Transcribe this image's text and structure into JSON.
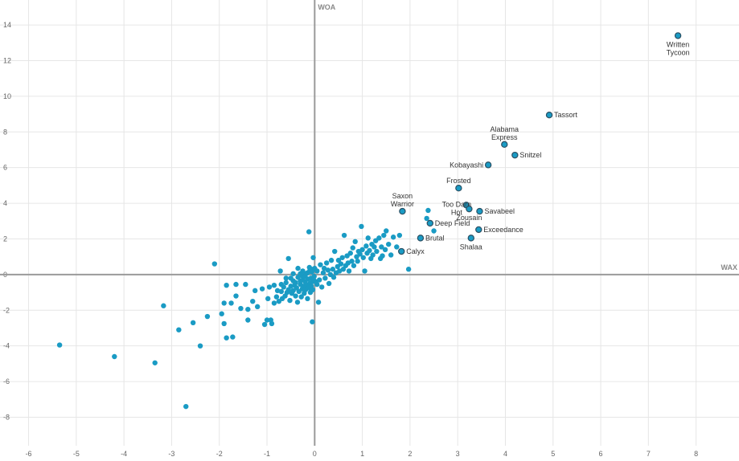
{
  "chart_data": {
    "type": "scatter",
    "xlabel": "WAX",
    "ylabel": "WOA",
    "xlim": [
      -6.6,
      8.9
    ],
    "ylim": [
      -9.6,
      15.4
    ],
    "grid": true,
    "colors": {
      "point": "#1a9bc4",
      "labeled_stroke": "#2b4f63",
      "axis": "#9a9a9a",
      "grid": "#e6e6e6"
    },
    "x_ticks": [
      -6,
      -5,
      -4,
      -3,
      -2,
      -1,
      0,
      1,
      2,
      3,
      4,
      5,
      6,
      7,
      8
    ],
    "y_ticks": [
      -8,
      -6,
      -4,
      -2,
      0,
      2,
      4,
      6,
      8,
      10,
      12,
      14
    ],
    "labeled_points": [
      {
        "name": "Written Tycoon",
        "lines": [
          "Written",
          "Tycoon"
        ],
        "x": 7.62,
        "y": 13.4,
        "pos": "below"
      },
      {
        "name": "Tassort",
        "lines": [
          "Tassort"
        ],
        "x": 4.92,
        "y": 8.95,
        "pos": "right"
      },
      {
        "name": "Alabama Express",
        "lines": [
          "Alabama",
          "Express"
        ],
        "x": 3.98,
        "y": 7.3,
        "pos": "above"
      },
      {
        "name": "Snitzel",
        "lines": [
          "Snitzel"
        ],
        "x": 4.2,
        "y": 6.7,
        "pos": "right"
      },
      {
        "name": "Kobayashi",
        "lines": [
          "Kobayashi"
        ],
        "x": 3.64,
        "y": 6.15,
        "pos": "left"
      },
      {
        "name": "Frosted",
        "lines": [
          "Frosted"
        ],
        "x": 3.02,
        "y": 4.85,
        "pos": "above"
      },
      {
        "name": "Saxon Warrior",
        "lines": [
          "Saxon",
          "Warrior"
        ],
        "x": 1.84,
        "y": 3.55,
        "pos": "above"
      },
      {
        "name": "Too Darn Hot",
        "lines": [
          "Too Darn",
          "Hot"
        ],
        "x": 3.18,
        "y": 3.9,
        "pos": "tdh"
      },
      {
        "name": "Zousain",
        "lines": [
          "Zousain"
        ],
        "x": 3.24,
        "y": 3.68,
        "pos": "below"
      },
      {
        "name": "Savabeel",
        "lines": [
          "Savabeel"
        ],
        "x": 3.46,
        "y": 3.55,
        "pos": "right"
      },
      {
        "name": "Deep Field",
        "lines": [
          "Deep Field"
        ],
        "x": 2.42,
        "y": 2.88,
        "pos": "right"
      },
      {
        "name": "Exceedance",
        "lines": [
          "Exceedance"
        ],
        "x": 3.44,
        "y": 2.52,
        "pos": "right"
      },
      {
        "name": "Brutal",
        "lines": [
          "Brutal"
        ],
        "x": 2.22,
        "y": 2.05,
        "pos": "right"
      },
      {
        "name": "Shalaa",
        "lines": [
          "Shalaa"
        ],
        "x": 3.28,
        "y": 2.05,
        "pos": "below"
      },
      {
        "name": "Calyx",
        "lines": [
          "Calyx"
        ],
        "x": 1.82,
        "y": 1.3,
        "pos": "right"
      }
    ],
    "points": [
      [
        -5.35,
        -3.95
      ],
      [
        -4.2,
        -4.6
      ],
      [
        -3.35,
        -4.95
      ],
      [
        -3.17,
        -1.75
      ],
      [
        -2.7,
        -7.4
      ],
      [
        -2.85,
        -3.1
      ],
      [
        -2.55,
        -2.7
      ],
      [
        -2.4,
        -4.0
      ],
      [
        -2.25,
        -2.35
      ],
      [
        -2.1,
        0.6
      ],
      [
        -1.9,
        -2.75
      ],
      [
        -1.95,
        -2.2
      ],
      [
        -1.9,
        -1.6
      ],
      [
        -1.85,
        -3.55
      ],
      [
        -1.85,
        -0.6
      ],
      [
        -1.75,
        -1.6
      ],
      [
        -1.72,
        -3.5
      ],
      [
        -1.65,
        -1.2
      ],
      [
        -1.65,
        -0.55
      ],
      [
        -1.55,
        -1.9
      ],
      [
        -1.45,
        -0.55
      ],
      [
        -1.4,
        -2.55
      ],
      [
        -1.4,
        -1.95
      ],
      [
        -1.3,
        -1.5
      ],
      [
        -1.25,
        -0.9
      ],
      [
        -1.2,
        -1.8
      ],
      [
        -1.1,
        -0.8
      ],
      [
        -1.05,
        -2.8
      ],
      [
        -1.0,
        -2.55
      ],
      [
        -0.98,
        -1.35
      ],
      [
        -0.95,
        -0.7
      ],
      [
        -0.92,
        -2.55
      ],
      [
        -0.9,
        -2.75
      ],
      [
        -0.85,
        -1.6
      ],
      [
        -0.8,
        -1.25
      ],
      [
        -0.78,
        -0.9
      ],
      [
        -0.75,
        -1.5
      ],
      [
        -0.72,
        0.2
      ],
      [
        -0.7,
        -0.95
      ],
      [
        -0.68,
        -1.35
      ],
      [
        -0.65,
        -0.7
      ],
      [
        -0.62,
        -1.2
      ],
      [
        -0.6,
        -0.2
      ],
      [
        -0.58,
        -1.0
      ],
      [
        -0.55,
        -0.85
      ],
      [
        -0.52,
        -1.45
      ],
      [
        -0.5,
        -0.65
      ],
      [
        -0.48,
        -1.05
      ],
      [
        -0.45,
        -0.35
      ],
      [
        -0.45,
        -0.9
      ],
      [
        -0.42,
        -0.6
      ],
      [
        -0.4,
        -1.2
      ],
      [
        -0.38,
        -0.75
      ],
      [
        -0.36,
        -1.55
      ],
      [
        -0.35,
        -0.15
      ],
      [
        -0.33,
        -0.95
      ],
      [
        -0.3,
        -0.55
      ],
      [
        -0.28,
        -1.25
      ],
      [
        -0.26,
        -0.8
      ],
      [
        -0.25,
        -0.3
      ],
      [
        -0.23,
        -0.65
      ],
      [
        -0.22,
        -1.05
      ],
      [
        -0.2,
        -0.4
      ],
      [
        -0.19,
        -0.85
      ],
      [
        -0.18,
        0.05
      ],
      [
        -0.16,
        -0.6
      ],
      [
        -0.15,
        -1.35
      ],
      [
        -0.14,
        -0.25
      ],
      [
        -0.12,
        -0.75
      ],
      [
        -0.11,
        0.4
      ],
      [
        -0.1,
        -0.5
      ],
      [
        -0.09,
        -1.0
      ],
      [
        -0.08,
        -0.2
      ],
      [
        -0.07,
        -0.65
      ],
      [
        -0.06,
        0.15
      ],
      [
        -0.05,
        -0.4
      ],
      [
        -0.04,
        -0.85
      ],
      [
        -0.03,
        0.3
      ],
      [
        -0.02,
        -0.3
      ],
      [
        -0.01,
        -0.1
      ],
      [
        -0.3,
        -0.35
      ],
      [
        -0.5,
        -0.2
      ],
      [
        -0.27,
        -0.05
      ],
      [
        -0.6,
        -0.45
      ],
      [
        -0.7,
        -0.55
      ],
      [
        -0.4,
        -0.45
      ],
      [
        -0.35,
        0.35
      ],
      [
        -0.55,
        0.9
      ],
      [
        -0.45,
        0.05
      ],
      [
        -0.85,
        -0.6
      ],
      [
        -0.15,
        0.1
      ],
      [
        -0.25,
        0.2
      ],
      [
        -0.1,
        0.25
      ],
      [
        -0.2,
        -0.1
      ],
      [
        -0.3,
        0.05
      ],
      [
        -0.12,
        2.4
      ],
      [
        -0.05,
        -2.65
      ],
      [
        -0.03,
        0.95
      ],
      [
        0.0,
        0.35
      ],
      [
        0.02,
        -0.4
      ],
      [
        0.05,
        -0.55
      ],
      [
        0.05,
        0.2
      ],
      [
        0.08,
        -1.55
      ],
      [
        0.1,
        -0.3
      ],
      [
        0.12,
        0.55
      ],
      [
        0.15,
        -0.7
      ],
      [
        0.18,
        0.1
      ],
      [
        0.2,
        0.35
      ],
      [
        0.22,
        -0.2
      ],
      [
        0.25,
        0.65
      ],
      [
        0.28,
        0.25
      ],
      [
        0.3,
        -0.5
      ],
      [
        0.33,
        0.0
      ],
      [
        0.35,
        0.8
      ],
      [
        0.38,
        0.3
      ],
      [
        0.4,
        -0.15
      ],
      [
        0.42,
        1.3
      ],
      [
        0.45,
        0.1
      ],
      [
        0.48,
        0.45
      ],
      [
        0.5,
        0.8
      ],
      [
        0.52,
        0.2
      ],
      [
        0.55,
        0.6
      ],
      [
        0.58,
        0.95
      ],
      [
        0.6,
        0.3
      ],
      [
        0.62,
        2.2
      ],
      [
        0.65,
        0.5
      ],
      [
        0.68,
        1.05
      ],
      [
        0.7,
        0.65
      ],
      [
        0.72,
        0.2
      ],
      [
        0.75,
        1.2
      ],
      [
        0.78,
        0.75
      ],
      [
        0.8,
        1.5
      ],
      [
        0.82,
        0.5
      ],
      [
        0.85,
        1.85
      ],
      [
        0.88,
        1.0
      ],
      [
        0.9,
        0.75
      ],
      [
        0.92,
        1.3
      ],
      [
        0.95,
        1.15
      ],
      [
        0.98,
        2.7
      ],
      [
        1.0,
        1.4
      ],
      [
        1.02,
        0.95
      ],
      [
        1.05,
        0.2
      ],
      [
        1.08,
        1.6
      ],
      [
        1.1,
        1.2
      ],
      [
        1.12,
        2.05
      ],
      [
        1.15,
        1.35
      ],
      [
        1.18,
        0.9
      ],
      [
        1.2,
        1.7
      ],
      [
        1.22,
        1.1
      ],
      [
        1.25,
        1.55
      ],
      [
        1.28,
        1.9
      ],
      [
        1.3,
        1.3
      ],
      [
        1.35,
        2.05
      ],
      [
        1.38,
        0.9
      ],
      [
        1.4,
        1.55
      ],
      [
        1.42,
        1.05
      ],
      [
        1.45,
        2.2
      ],
      [
        1.48,
        1.4
      ],
      [
        1.5,
        2.45
      ],
      [
        1.55,
        1.7
      ],
      [
        1.6,
        1.1
      ],
      [
        1.65,
        2.1
      ],
      [
        1.72,
        1.55
      ],
      [
        1.78,
        2.2
      ],
      [
        1.97,
        0.3
      ],
      [
        2.35,
        3.15
      ],
      [
        2.38,
        3.6
      ],
      [
        2.5,
        2.45
      ]
    ]
  }
}
